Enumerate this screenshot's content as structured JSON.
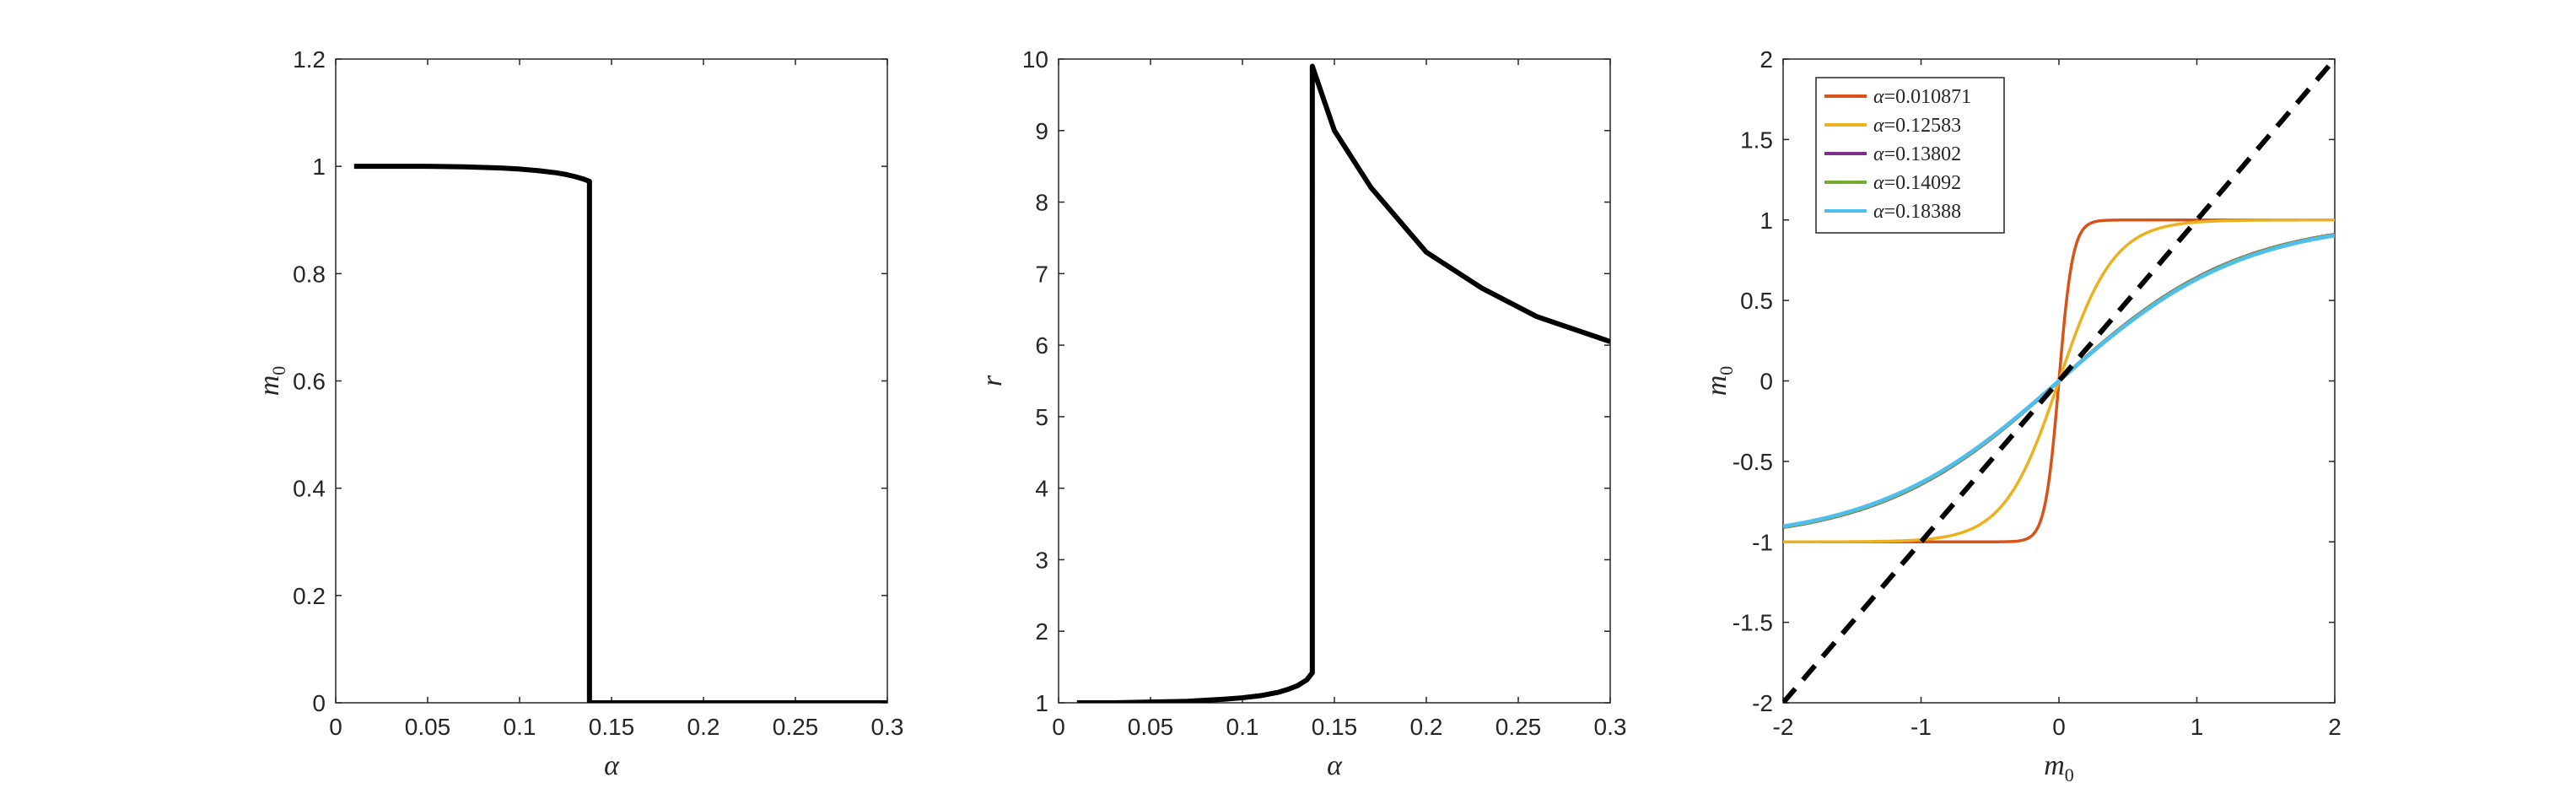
{
  "chart_data": [
    {
      "type": "line",
      "xlabel": "α",
      "ylabel": "m",
      "ylabel_sub": "0",
      "xlim": [
        0,
        0.3
      ],
      "ylim": [
        0,
        1.2
      ],
      "xticks": [
        0,
        0.05,
        0.1,
        0.15,
        0.2,
        0.25,
        0.3
      ],
      "xtick_labels": [
        "0",
        "0.05",
        "0.1",
        "0.15",
        "0.2",
        "0.25",
        "0.3"
      ],
      "yticks": [
        0,
        0.2,
        0.4,
        0.6,
        0.8,
        1,
        1.2
      ],
      "ytick_labels": [
        "0",
        "0.2",
        "0.4",
        "0.6",
        "0.8",
        "1",
        "1.2"
      ],
      "grid": false,
      "series": [
        {
          "color": "#000000",
          "x": [
            0.01,
            0.03,
            0.05,
            0.07,
            0.09,
            0.1,
            0.11,
            0.12,
            0.125,
            0.13,
            0.135,
            0.138,
            0.138,
            0.139,
            0.15,
            0.2,
            0.25,
            0.3
          ],
          "y": [
            1.0,
            1.0,
            1.0,
            0.999,
            0.997,
            0.995,
            0.992,
            0.988,
            0.985,
            0.981,
            0.976,
            0.972,
            0.0,
            0.0,
            0.0,
            0.0,
            0.0,
            0.0
          ]
        }
      ]
    },
    {
      "type": "line",
      "xlabel": "α",
      "ylabel": "r",
      "xlim": [
        0,
        0.3
      ],
      "ylim": [
        1,
        10
      ],
      "xticks": [
        0,
        0.05,
        0.1,
        0.15,
        0.2,
        0.25,
        0.3
      ],
      "xtick_labels": [
        "0",
        "0.05",
        "0.1",
        "0.15",
        "0.2",
        "0.25",
        "0.3"
      ],
      "yticks": [
        1,
        2,
        3,
        4,
        5,
        6,
        7,
        8,
        9,
        10
      ],
      "ytick_labels": [
        "1",
        "2",
        "3",
        "4",
        "5",
        "6",
        "7",
        "8",
        "9",
        "10"
      ],
      "grid": false,
      "series": [
        {
          "color": "#000000",
          "x": [
            0.01,
            0.03,
            0.05,
            0.07,
            0.09,
            0.1,
            0.11,
            0.12,
            0.125,
            0.13,
            0.135,
            0.138,
            0.138,
            0.15,
            0.17,
            0.2,
            0.23,
            0.26,
            0.3
          ],
          "y": [
            1.0,
            1.0,
            1.01,
            1.02,
            1.05,
            1.07,
            1.1,
            1.15,
            1.19,
            1.24,
            1.32,
            1.42,
            9.9,
            9.0,
            8.2,
            7.3,
            6.8,
            6.4,
            6.05
          ]
        }
      ]
    },
    {
      "type": "line",
      "xlabel": "m",
      "xlabel_sub": "0",
      "ylabel": "m",
      "ylabel_sub": "0",
      "xlim": [
        -2,
        2
      ],
      "ylim": [
        -2,
        2
      ],
      "xticks": [
        -2,
        -1,
        0,
        1,
        2
      ],
      "xtick_labels": [
        "-2",
        "-1",
        "0",
        "1",
        "2"
      ],
      "yticks": [
        -2,
        -1.5,
        -1,
        -0.5,
        0,
        0.5,
        1,
        1.5,
        2
      ],
      "ytick_labels": [
        "-2",
        "-1.5",
        "-1",
        "-0.5",
        "0",
        "0.5",
        "1",
        "1.5",
        "2"
      ],
      "grid": false,
      "legend_position": "top-left",
      "series": [
        {
          "name": "α=0.010871",
          "legend_alpha": "α",
          "legend_value": "=0.010871",
          "color": "#D95319",
          "gain": 10
        },
        {
          "name": "α=0.12583",
          "legend_alpha": "α",
          "legend_value": "=0.12583",
          "color": "#EDB120",
          "gain": 2.5
        },
        {
          "name": "α=0.13802",
          "legend_alpha": "α",
          "legend_value": "=0.13802",
          "color": "#7E2F8E",
          "gain": 0.76
        },
        {
          "name": "α=0.14092",
          "legend_alpha": "α",
          "legend_value": "=0.14092",
          "color": "#77AC30",
          "gain": 0.755
        },
        {
          "name": "α=0.18388",
          "legend_alpha": "α",
          "legend_value": "=0.18388",
          "color": "#4DBEEE",
          "gain": 0.745
        },
        {
          "name": "",
          "color": "#000000",
          "dashed": true,
          "x": [
            -2,
            2
          ],
          "y": [
            -2,
            2
          ]
        }
      ]
    }
  ]
}
